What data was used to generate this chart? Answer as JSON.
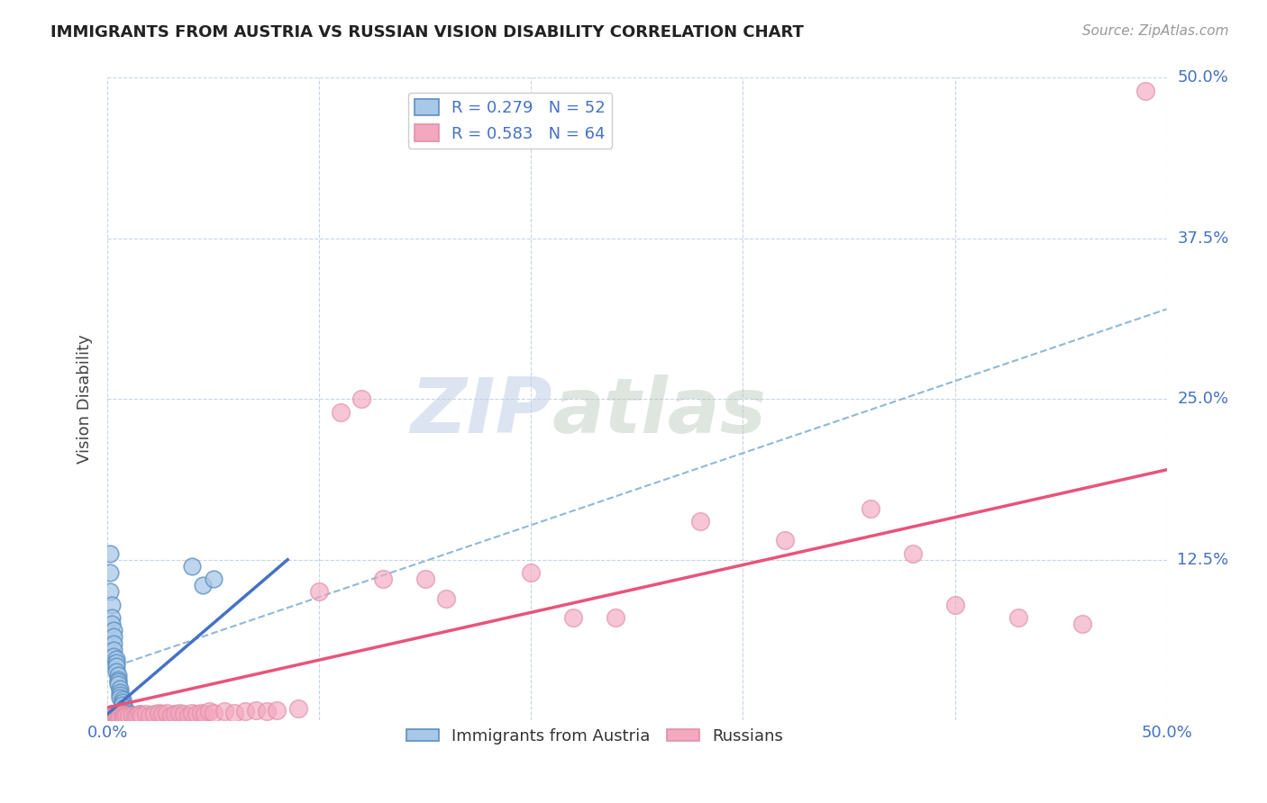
{
  "title": "IMMIGRANTS FROM AUSTRIA VS RUSSIAN VISION DISABILITY CORRELATION CHART",
  "source": "Source: ZipAtlas.com",
  "xlabel": "",
  "ylabel": "Vision Disability",
  "watermark_zip": "ZIP",
  "watermark_atlas": "atlas",
  "legend_entries": [
    {
      "label": "R = 0.279   N = 52",
      "color": "#a8c4e0"
    },
    {
      "label": "R = 0.583   N = 64",
      "color": "#f4b8c8"
    }
  ],
  "xlim": [
    0.0,
    0.5
  ],
  "ylim": [
    0.0,
    0.5
  ],
  "xticks": [
    0.0,
    0.1,
    0.2,
    0.3,
    0.4,
    0.5
  ],
  "yticks": [
    0.0,
    0.125,
    0.25,
    0.375,
    0.5
  ],
  "xticklabels": [
    "0.0%",
    "",
    "",
    "",
    "",
    "50.0%"
  ],
  "yticklabels": [
    "",
    "12.5%",
    "25.0%",
    "37.5%",
    "50.0%"
  ],
  "austria_scatter": [
    [
      0.001,
      0.13
    ],
    [
      0.001,
      0.115
    ],
    [
      0.001,
      0.1
    ],
    [
      0.002,
      0.09
    ],
    [
      0.002,
      0.08
    ],
    [
      0.002,
      0.075
    ],
    [
      0.003,
      0.07
    ],
    [
      0.003,
      0.065
    ],
    [
      0.003,
      0.06
    ],
    [
      0.003,
      0.055
    ],
    [
      0.003,
      0.05
    ],
    [
      0.004,
      0.048
    ],
    [
      0.004,
      0.045
    ],
    [
      0.004,
      0.042
    ],
    [
      0.004,
      0.038
    ],
    [
      0.005,
      0.035
    ],
    [
      0.005,
      0.032
    ],
    [
      0.005,
      0.03
    ],
    [
      0.005,
      0.028
    ],
    [
      0.006,
      0.025
    ],
    [
      0.006,
      0.022
    ],
    [
      0.006,
      0.02
    ],
    [
      0.006,
      0.018
    ],
    [
      0.007,
      0.016
    ],
    [
      0.007,
      0.014
    ],
    [
      0.007,
      0.012
    ],
    [
      0.008,
      0.01
    ],
    [
      0.008,
      0.008
    ],
    [
      0.008,
      0.006
    ],
    [
      0.009,
      0.005
    ],
    [
      0.009,
      0.004
    ],
    [
      0.009,
      0.003
    ],
    [
      0.01,
      0.004
    ],
    [
      0.01,
      0.003
    ],
    [
      0.011,
      0.005
    ],
    [
      0.012,
      0.004
    ],
    [
      0.013,
      0.003
    ],
    [
      0.014,
      0.004
    ],
    [
      0.015,
      0.005
    ],
    [
      0.016,
      0.004
    ],
    [
      0.018,
      0.003
    ],
    [
      0.02,
      0.004
    ],
    [
      0.022,
      0.003
    ],
    [
      0.024,
      0.005
    ],
    [
      0.026,
      0.004
    ],
    [
      0.028,
      0.003
    ],
    [
      0.03,
      0.004
    ],
    [
      0.032,
      0.005
    ],
    [
      0.034,
      0.004
    ],
    [
      0.04,
      0.12
    ],
    [
      0.045,
      0.105
    ],
    [
      0.05,
      0.11
    ]
  ],
  "russia_scatter": [
    [
      0.001,
      0.003
    ],
    [
      0.001,
      0.004
    ],
    [
      0.002,
      0.003
    ],
    [
      0.002,
      0.005
    ],
    [
      0.003,
      0.003
    ],
    [
      0.003,
      0.004
    ],
    [
      0.004,
      0.003
    ],
    [
      0.004,
      0.005
    ],
    [
      0.005,
      0.004
    ],
    [
      0.005,
      0.003
    ],
    [
      0.006,
      0.004
    ],
    [
      0.006,
      0.003
    ],
    [
      0.007,
      0.005
    ],
    [
      0.007,
      0.003
    ],
    [
      0.008,
      0.004
    ],
    [
      0.008,
      0.003
    ],
    [
      0.009,
      0.004
    ],
    [
      0.01,
      0.003
    ],
    [
      0.012,
      0.004
    ],
    [
      0.013,
      0.003
    ],
    [
      0.014,
      0.004
    ],
    [
      0.015,
      0.005
    ],
    [
      0.016,
      0.004
    ],
    [
      0.018,
      0.005
    ],
    [
      0.02,
      0.004
    ],
    [
      0.022,
      0.005
    ],
    [
      0.024,
      0.006
    ],
    [
      0.026,
      0.005
    ],
    [
      0.028,
      0.006
    ],
    [
      0.03,
      0.004
    ],
    [
      0.032,
      0.005
    ],
    [
      0.034,
      0.006
    ],
    [
      0.036,
      0.005
    ],
    [
      0.038,
      0.004
    ],
    [
      0.04,
      0.006
    ],
    [
      0.042,
      0.005
    ],
    [
      0.044,
      0.006
    ],
    [
      0.046,
      0.005
    ],
    [
      0.048,
      0.007
    ],
    [
      0.05,
      0.006
    ],
    [
      0.055,
      0.007
    ],
    [
      0.06,
      0.006
    ],
    [
      0.065,
      0.007
    ],
    [
      0.07,
      0.008
    ],
    [
      0.075,
      0.007
    ],
    [
      0.08,
      0.008
    ],
    [
      0.09,
      0.009
    ],
    [
      0.1,
      0.1
    ],
    [
      0.11,
      0.24
    ],
    [
      0.12,
      0.25
    ],
    [
      0.13,
      0.11
    ],
    [
      0.15,
      0.11
    ],
    [
      0.16,
      0.095
    ],
    [
      0.2,
      0.115
    ],
    [
      0.22,
      0.08
    ],
    [
      0.24,
      0.08
    ],
    [
      0.28,
      0.155
    ],
    [
      0.32,
      0.14
    ],
    [
      0.36,
      0.165
    ],
    [
      0.38,
      0.13
    ],
    [
      0.4,
      0.09
    ],
    [
      0.43,
      0.08
    ],
    [
      0.46,
      0.075
    ],
    [
      0.49,
      0.49
    ]
  ],
  "austria_line": {
    "x0": 0.0,
    "x1": 0.085,
    "y0": 0.005,
    "y1": 0.125
  },
  "russia_line": {
    "x0": 0.0,
    "x1": 0.5,
    "y0": 0.01,
    "y1": 0.195
  },
  "dashed_line": {
    "x0": 0.0,
    "x1": 0.5,
    "y0": 0.04,
    "y1": 0.32
  },
  "austria_line_color": "#4472c4",
  "russia_line_color": "#e8547a",
  "dashed_line_color": "#90b8d8",
  "scatter_austria_color": "#a8c8e8",
  "scatter_russia_color": "#f4a8c0",
  "background_color": "#ffffff",
  "grid_color": "#c8d4e4"
}
